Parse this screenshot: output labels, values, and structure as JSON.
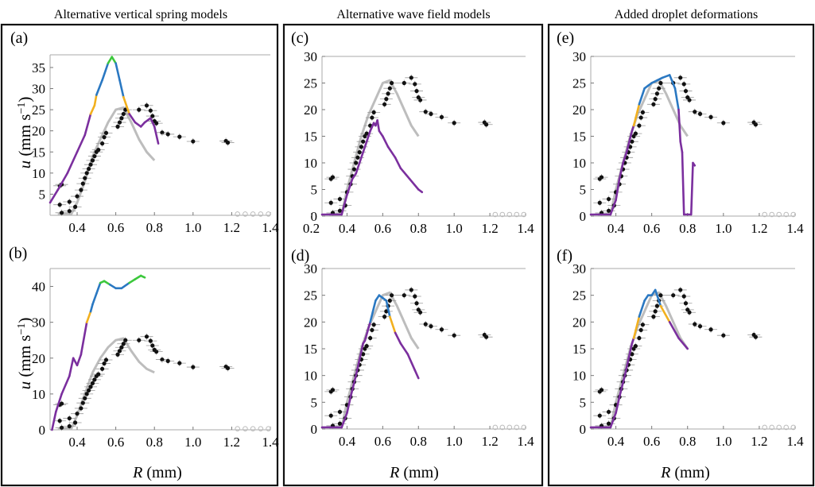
{
  "figure": {
    "columns": [
      {
        "title": "Alternative vertical spring models"
      },
      {
        "title": "Alternative wave field models"
      },
      {
        "title": "Added droplet deformations"
      }
    ],
    "xlabel": "R (mm)",
    "ylabel": "u (mm s⁻¹)",
    "colors": {
      "purple": "#7b2f9e",
      "orange": "#f2b01e",
      "blue": "#2a78c2",
      "green": "#3cc83c",
      "gray": "#bdbdbd",
      "points": "#111111",
      "frame": "#111111"
    }
  },
  "chart_data": [
    {
      "panel": "a",
      "label": "(a)",
      "type": "line",
      "xlim": [
        0.26,
        1.4
      ],
      "ylim": [
        0,
        38
      ],
      "xticks": [
        "0.4",
        "0.6",
        "0.8",
        "1.0",
        "1.2",
        "1.4"
      ],
      "yticks": [
        "5",
        "10",
        "15",
        "20",
        "25",
        "30",
        "35"
      ],
      "model_curve": [
        [
          0.26,
          3
        ],
        [
          0.3,
          6
        ],
        [
          0.35,
          10
        ],
        [
          0.4,
          15
        ],
        [
          0.44,
          19
        ],
        [
          0.47,
          24
        ],
        [
          0.49,
          26
        ],
        [
          0.5,
          28.5
        ],
        [
          0.53,
          32
        ],
        [
          0.56,
          36
        ],
        [
          0.58,
          37.5
        ],
        [
          0.6,
          36
        ],
        [
          0.62,
          32
        ],
        [
          0.64,
          28
        ],
        [
          0.67,
          24
        ],
        [
          0.7,
          22
        ],
        [
          0.73,
          21
        ],
        [
          0.75,
          22
        ],
        [
          0.78,
          23
        ],
        [
          0.8,
          21
        ],
        [
          0.82,
          17
        ]
      ],
      "gray_curve": [
        [
          0.3,
          0.3
        ],
        [
          0.37,
          0.3
        ],
        [
          0.4,
          3
        ],
        [
          0.44,
          8
        ],
        [
          0.48,
          14
        ],
        [
          0.52,
          18
        ],
        [
          0.56,
          22
        ],
        [
          0.6,
          25
        ],
        [
          0.64,
          25.5
        ],
        [
          0.68,
          22
        ],
        [
          0.72,
          18
        ],
        [
          0.76,
          15
        ],
        [
          0.8,
          13
        ]
      ]
    },
    {
      "panel": "b",
      "label": "(b)",
      "type": "line",
      "xlim": [
        0.26,
        1.4
      ],
      "ylim": [
        0,
        45
      ],
      "xticks": [
        "0.4",
        "0.6",
        "0.8",
        "1.0",
        "1.2",
        "1.4"
      ],
      "yticks": [
        "0",
        "10",
        "20",
        "30",
        "40"
      ],
      "model_curve": [
        [
          0.27,
          0
        ],
        [
          0.29,
          5
        ],
        [
          0.32,
          10
        ],
        [
          0.36,
          15
        ],
        [
          0.38,
          20
        ],
        [
          0.4,
          18
        ],
        [
          0.42,
          21
        ],
        [
          0.45,
          30
        ],
        [
          0.47,
          33
        ],
        [
          0.48,
          35
        ],
        [
          0.5,
          38
        ],
        [
          0.52,
          41
        ],
        [
          0.54,
          41.5
        ],
        [
          0.57,
          40.5
        ],
        [
          0.6,
          39.5
        ],
        [
          0.63,
          39.5
        ],
        [
          0.67,
          41
        ],
        [
          0.7,
          42
        ],
        [
          0.73,
          43
        ],
        [
          0.75,
          42.5
        ]
      ],
      "gray_curve": [
        [
          0.3,
          0.3
        ],
        [
          0.37,
          0.3
        ],
        [
          0.4,
          4
        ],
        [
          0.44,
          10
        ],
        [
          0.48,
          16
        ],
        [
          0.52,
          20
        ],
        [
          0.56,
          23
        ],
        [
          0.6,
          25
        ],
        [
          0.64,
          25.5
        ],
        [
          0.68,
          22
        ],
        [
          0.72,
          19
        ],
        [
          0.76,
          17
        ],
        [
          0.8,
          16
        ]
      ]
    },
    {
      "panel": "c",
      "label": "(c)",
      "type": "line",
      "xlim": [
        0.26,
        1.4
      ],
      "ylim": [
        0,
        30
      ],
      "xticks": [
        "0.2",
        "0.4",
        "0.6",
        "0.8",
        "1.0",
        "1.2",
        "1.4"
      ],
      "yticks": [
        "0",
        "5",
        "10",
        "15",
        "20",
        "25",
        "30"
      ],
      "model_curve": [
        [
          0.26,
          0.3
        ],
        [
          0.37,
          0.3
        ],
        [
          0.4,
          4
        ],
        [
          0.43,
          7
        ],
        [
          0.45,
          8
        ],
        [
          0.47,
          10
        ],
        [
          0.5,
          13
        ],
        [
          0.53,
          16
        ],
        [
          0.55,
          17.5
        ],
        [
          0.56,
          17
        ],
        [
          0.57,
          18
        ],
        [
          0.58,
          16
        ],
        [
          0.6,
          15
        ],
        [
          0.63,
          13
        ],
        [
          0.67,
          11
        ],
        [
          0.7,
          9
        ],
        [
          0.75,
          7
        ],
        [
          0.8,
          5
        ],
        [
          0.82,
          4.5
        ]
      ],
      "gray_curve": [
        [
          0.3,
          0.3
        ],
        [
          0.37,
          0.3
        ],
        [
          0.4,
          5
        ],
        [
          0.44,
          10
        ],
        [
          0.48,
          15
        ],
        [
          0.52,
          19
        ],
        [
          0.56,
          22
        ],
        [
          0.6,
          25
        ],
        [
          0.64,
          25.5
        ],
        [
          0.68,
          23
        ],
        [
          0.72,
          20
        ],
        [
          0.76,
          17
        ],
        [
          0.8,
          15
        ]
      ]
    },
    {
      "panel": "d",
      "label": "(d)",
      "type": "line",
      "xlim": [
        0.26,
        1.4
      ],
      "ylim": [
        0,
        30
      ],
      "xticks": [
        "0.4",
        "0.6",
        "0.8",
        "1.0",
        "1.2",
        "1.4"
      ],
      "yticks": [
        "0",
        "5",
        "10",
        "15",
        "20",
        "25",
        "30"
      ],
      "model_curve": [
        [
          0.26,
          0.3
        ],
        [
          0.37,
          0.3
        ],
        [
          0.4,
          3
        ],
        [
          0.42,
          6
        ],
        [
          0.45,
          10
        ],
        [
          0.47,
          13
        ],
        [
          0.49,
          16
        ],
        [
          0.5,
          16.5
        ],
        [
          0.53,
          20
        ],
        [
          0.56,
          24
        ],
        [
          0.58,
          25
        ],
        [
          0.6,
          24.5
        ],
        [
          0.62,
          24
        ],
        [
          0.64,
          21
        ],
        [
          0.67,
          18
        ],
        [
          0.7,
          16
        ],
        [
          0.74,
          14
        ],
        [
          0.78,
          11
        ],
        [
          0.8,
          9.5
        ]
      ],
      "gray_curve": [
        [
          0.3,
          0.3
        ],
        [
          0.37,
          0.3
        ],
        [
          0.4,
          5
        ],
        [
          0.44,
          10
        ],
        [
          0.48,
          15
        ],
        [
          0.52,
          19
        ],
        [
          0.56,
          22
        ],
        [
          0.6,
          25
        ],
        [
          0.64,
          25.5
        ],
        [
          0.68,
          23
        ],
        [
          0.72,
          20
        ],
        [
          0.76,
          17
        ],
        [
          0.8,
          15
        ]
      ]
    },
    {
      "panel": "e",
      "label": "(e)",
      "type": "line",
      "xlim": [
        0.26,
        1.4
      ],
      "ylim": [
        0,
        30
      ],
      "xticks": [
        "0.4",
        "0.6",
        "0.8",
        "1.0",
        "1.2",
        "1.4"
      ],
      "yticks": [
        "0",
        "5",
        "10",
        "15",
        "20",
        "25",
        "30"
      ],
      "model_curve": [
        [
          0.26,
          0.3
        ],
        [
          0.37,
          0.3
        ],
        [
          0.4,
          3
        ],
        [
          0.42,
          7
        ],
        [
          0.44,
          10
        ],
        [
          0.46,
          12
        ],
        [
          0.49,
          16
        ],
        [
          0.5,
          17
        ],
        [
          0.53,
          21
        ],
        [
          0.56,
          24
        ],
        [
          0.58,
          24.5
        ],
        [
          0.6,
          25
        ],
        [
          0.63,
          25.5
        ],
        [
          0.66,
          26
        ],
        [
          0.7,
          26.5
        ],
        [
          0.73,
          24
        ],
        [
          0.75,
          20
        ],
        [
          0.76,
          14
        ],
        [
          0.77,
          12
        ],
        [
          0.78,
          0.3
        ],
        [
          0.82,
          0.3
        ],
        [
          0.83,
          10
        ],
        [
          0.84,
          9.5
        ]
      ],
      "gray_curve": [
        [
          0.3,
          0.3
        ],
        [
          0.37,
          0.3
        ],
        [
          0.4,
          5
        ],
        [
          0.44,
          10
        ],
        [
          0.48,
          15
        ],
        [
          0.52,
          19
        ],
        [
          0.56,
          22
        ],
        [
          0.6,
          25
        ],
        [
          0.64,
          25.5
        ],
        [
          0.68,
          23
        ],
        [
          0.72,
          20
        ],
        [
          0.76,
          17
        ],
        [
          0.8,
          15
        ]
      ]
    },
    {
      "panel": "f",
      "label": "(f)",
      "type": "line",
      "xlim": [
        0.26,
        1.4
      ],
      "ylim": [
        0,
        30
      ],
      "xticks": [
        "0.4",
        "0.6",
        "0.8",
        "1.0",
        "1.2",
        "1.4"
      ],
      "yticks": [
        "0",
        "5",
        "10",
        "15",
        "20",
        "25",
        "30"
      ],
      "model_curve": [
        [
          0.26,
          0.3
        ],
        [
          0.37,
          0.3
        ],
        [
          0.4,
          3
        ],
        [
          0.42,
          6
        ],
        [
          0.45,
          10
        ],
        [
          0.47,
          13
        ],
        [
          0.49,
          16
        ],
        [
          0.5,
          17
        ],
        [
          0.53,
          21
        ],
        [
          0.56,
          24
        ],
        [
          0.58,
          25
        ],
        [
          0.6,
          25
        ],
        [
          0.62,
          26
        ],
        [
          0.65,
          23
        ],
        [
          0.7,
          20
        ],
        [
          0.75,
          17
        ],
        [
          0.8,
          15
        ]
      ],
      "gray_curve": [
        [
          0.3,
          0.3
        ],
        [
          0.37,
          0.3
        ],
        [
          0.4,
          5
        ],
        [
          0.44,
          10
        ],
        [
          0.48,
          15
        ],
        [
          0.52,
          19
        ],
        [
          0.56,
          22
        ],
        [
          0.6,
          25
        ],
        [
          0.64,
          25.5
        ],
        [
          0.68,
          23
        ],
        [
          0.72,
          20
        ],
        [
          0.76,
          17
        ],
        [
          0.8,
          15
        ]
      ]
    }
  ],
  "experimental_points": {
    "filled": [
      [
        0.31,
        7
      ],
      [
        0.32,
        7.3
      ],
      [
        0.31,
        2.5
      ],
      [
        0.32,
        0.6
      ],
      [
        0.36,
        1
      ],
      [
        0.36,
        3.2
      ],
      [
        0.39,
        2
      ],
      [
        0.4,
        4.5
      ],
      [
        0.42,
        6
      ],
      [
        0.43,
        7.5
      ],
      [
        0.44,
        8.8
      ],
      [
        0.45,
        10
      ],
      [
        0.46,
        11
      ],
      [
        0.47,
        12
      ],
      [
        0.48,
        13
      ],
      [
        0.49,
        14
      ],
      [
        0.5,
        15
      ],
      [
        0.51,
        15.5
      ],
      [
        0.53,
        17
      ],
      [
        0.54,
        18.5
      ],
      [
        0.55,
        19.5
      ],
      [
        0.61,
        21
      ],
      [
        0.62,
        22
      ],
      [
        0.63,
        23
      ],
      [
        0.64,
        24
      ],
      [
        0.65,
        25
      ],
      [
        0.72,
        25
      ],
      [
        0.76,
        26
      ],
      [
        0.78,
        24.8
      ],
      [
        0.79,
        23.5
      ],
      [
        0.81,
        21.8
      ],
      [
        0.8,
        22.3
      ],
      [
        0.84,
        19.6
      ],
      [
        0.87,
        19.2
      ],
      [
        0.93,
        18.6
      ],
      [
        1.0,
        17.5
      ],
      [
        1.17,
        17.6
      ],
      [
        1.18,
        17.2
      ]
    ],
    "hollow": [
      [
        1.23,
        0.3
      ],
      [
        1.27,
        0.3
      ],
      [
        1.31,
        0.3
      ],
      [
        1.35,
        0.3
      ],
      [
        1.39,
        0.3
      ]
    ]
  }
}
